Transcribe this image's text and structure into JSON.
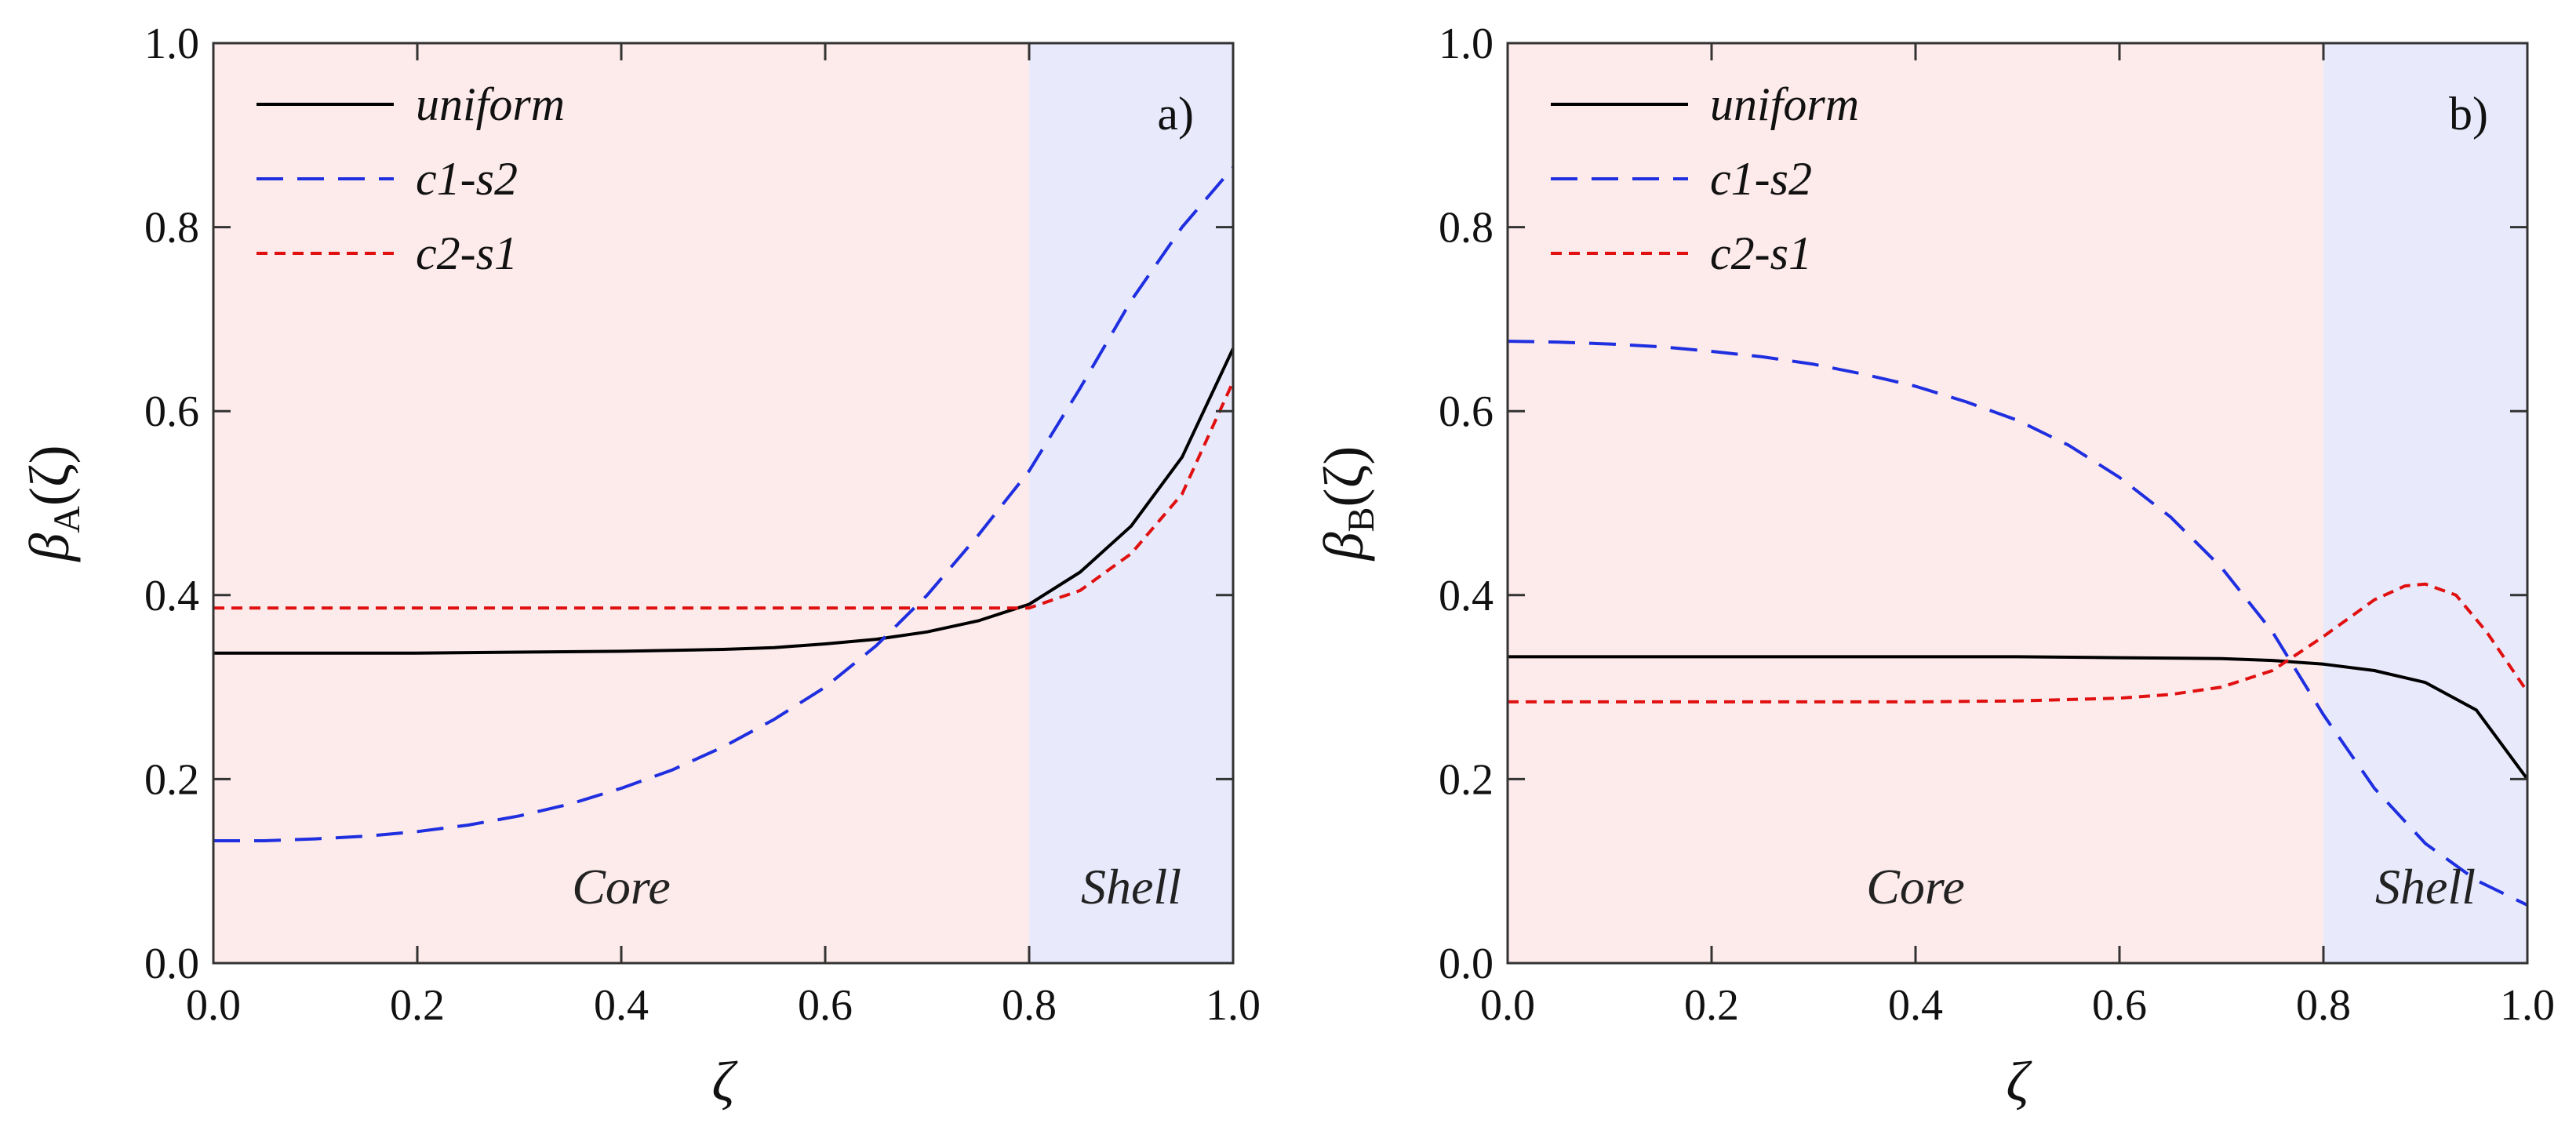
{
  "colors": {
    "uniform": "#000000",
    "c1_s2": "#1f2fe0",
    "c2_s1": "#e01010",
    "core_region": "#fdeaea",
    "shell_region": "#e8eafc"
  },
  "chart_data": [
    {
      "type": "line",
      "panel_label": "a)",
      "xlabel": "ζ",
      "ylabel": {
        "symbol": "β",
        "subscript": "A",
        "arg": "(ζ)"
      },
      "xlim": [
        0.0,
        1.0
      ],
      "ylim": [
        0.0,
        1.0
      ],
      "xticks": [
        "0.0",
        "0.2",
        "0.4",
        "0.6",
        "0.8",
        "1.0"
      ],
      "yticks": [
        "0.0",
        "0.2",
        "0.4",
        "0.6",
        "0.8",
        "1.0"
      ],
      "regions": [
        {
          "label": "Core",
          "from": 0.0,
          "to": 0.8
        },
        {
          "label": "Shell",
          "from": 0.8,
          "to": 1.0
        }
      ],
      "legend_position": "top-left",
      "series": [
        {
          "name": "uniform",
          "style": "solid",
          "x": [
            0.0,
            0.1,
            0.2,
            0.3,
            0.4,
            0.5,
            0.55,
            0.6,
            0.65,
            0.7,
            0.75,
            0.8,
            0.85,
            0.9,
            0.95,
            1.0
          ],
          "y": [
            0.337,
            0.337,
            0.337,
            0.338,
            0.339,
            0.341,
            0.343,
            0.347,
            0.352,
            0.36,
            0.372,
            0.39,
            0.425,
            0.475,
            0.55,
            0.668
          ]
        },
        {
          "name": "c1-s2",
          "style": "dashed",
          "x": [
            0.0,
            0.05,
            0.1,
            0.15,
            0.2,
            0.25,
            0.3,
            0.35,
            0.4,
            0.45,
            0.5,
            0.55,
            0.6,
            0.65,
            0.7,
            0.75,
            0.8,
            0.85,
            0.9,
            0.95,
            1.0
          ],
          "y": [
            0.133,
            0.133,
            0.135,
            0.138,
            0.143,
            0.15,
            0.16,
            0.173,
            0.19,
            0.21,
            0.235,
            0.265,
            0.3,
            0.345,
            0.4,
            0.465,
            0.535,
            0.625,
            0.72,
            0.8,
            0.865
          ]
        },
        {
          "name": "c2-s1",
          "style": "dotted",
          "x": [
            0.0,
            0.1,
            0.2,
            0.3,
            0.4,
            0.5,
            0.6,
            0.7,
            0.8,
            0.85,
            0.9,
            0.95,
            1.0
          ],
          "y": [
            0.386,
            0.386,
            0.386,
            0.386,
            0.386,
            0.386,
            0.386,
            0.386,
            0.386,
            0.405,
            0.445,
            0.51,
            0.632
          ]
        }
      ]
    },
    {
      "type": "line",
      "panel_label": "b)",
      "xlabel": "ζ",
      "ylabel": {
        "symbol": "β",
        "subscript": "B",
        "arg": "(ζ)"
      },
      "xlim": [
        0.0,
        1.0
      ],
      "ylim": [
        0.0,
        1.0
      ],
      "xticks": [
        "0.0",
        "0.2",
        "0.4",
        "0.6",
        "0.8",
        "1.0"
      ],
      "yticks": [
        "0.0",
        "0.2",
        "0.4",
        "0.6",
        "0.8",
        "1.0"
      ],
      "regions": [
        {
          "label": "Core",
          "from": 0.0,
          "to": 0.8
        },
        {
          "label": "Shell",
          "from": 0.8,
          "to": 1.0
        }
      ],
      "legend_position": "top-left",
      "series": [
        {
          "name": "uniform",
          "style": "solid",
          "x": [
            0.0,
            0.1,
            0.2,
            0.3,
            0.4,
            0.5,
            0.6,
            0.7,
            0.75,
            0.8,
            0.85,
            0.9,
            0.95,
            1.0
          ],
          "y": [
            0.333,
            0.333,
            0.333,
            0.333,
            0.333,
            0.333,
            0.332,
            0.331,
            0.329,
            0.325,
            0.318,
            0.305,
            0.275,
            0.2
          ]
        },
        {
          "name": "c1-s2",
          "style": "dashed",
          "x": [
            0.0,
            0.05,
            0.1,
            0.15,
            0.2,
            0.25,
            0.3,
            0.35,
            0.4,
            0.45,
            0.5,
            0.55,
            0.6,
            0.65,
            0.7,
            0.75,
            0.8,
            0.85,
            0.9,
            0.95,
            1.0
          ],
          "y": [
            0.676,
            0.675,
            0.673,
            0.67,
            0.665,
            0.659,
            0.651,
            0.64,
            0.627,
            0.61,
            0.59,
            0.563,
            0.528,
            0.485,
            0.43,
            0.36,
            0.27,
            0.19,
            0.13,
            0.09,
            0.063
          ]
        },
        {
          "name": "c2-s1",
          "style": "dotted",
          "x": [
            0.0,
            0.1,
            0.2,
            0.3,
            0.4,
            0.5,
            0.6,
            0.65,
            0.7,
            0.75,
            0.8,
            0.85,
            0.88,
            0.9,
            0.93,
            0.96,
            1.0
          ],
          "y": [
            0.284,
            0.284,
            0.284,
            0.284,
            0.284,
            0.285,
            0.288,
            0.292,
            0.3,
            0.318,
            0.355,
            0.395,
            0.41,
            0.412,
            0.4,
            0.36,
            0.295
          ]
        }
      ]
    }
  ]
}
